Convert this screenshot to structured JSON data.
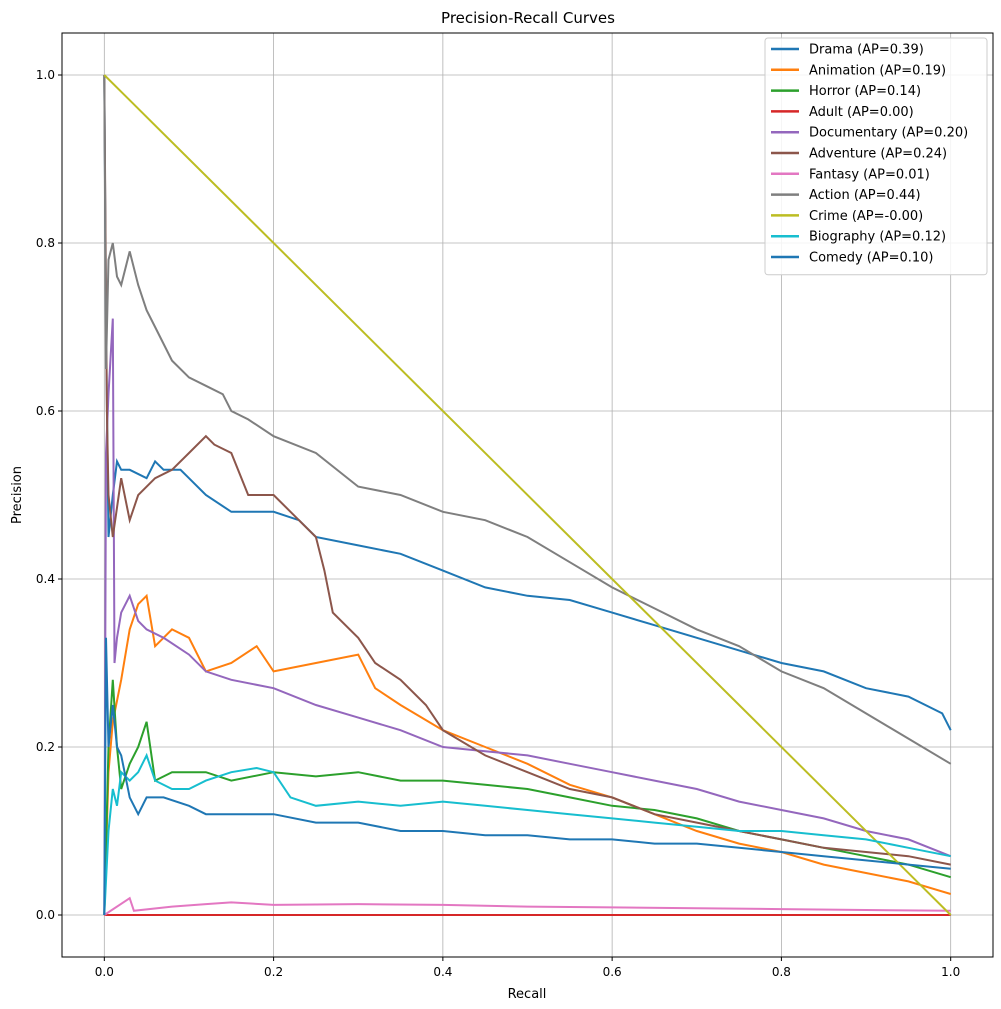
{
  "chart_data": {
    "type": "line",
    "title": "Precision-Recall Curves",
    "xlabel": "Recall",
    "ylabel": "Precision",
    "xlim": [
      -0.05,
      1.05
    ],
    "ylim": [
      -0.05,
      1.05
    ],
    "xticks": [
      "0.0",
      "0.2",
      "0.4",
      "0.6",
      "0.8",
      "1.0"
    ],
    "yticks": [
      "0.0",
      "0.2",
      "0.4",
      "0.6",
      "0.8",
      "1.0"
    ],
    "grid": true,
    "legend_position": "top-right",
    "series": [
      {
        "name": "Drama (AP=0.39)",
        "color": "#1f77b4",
        "x": [
          0,
          0.002,
          0.005,
          0.01,
          0.015,
          0.02,
          0.03,
          0.05,
          0.06,
          0.07,
          0.09,
          0.1,
          0.12,
          0.15,
          0.2,
          0.23,
          0.25,
          0.3,
          0.35,
          0.4,
          0.45,
          0.5,
          0.55,
          0.6,
          0.65,
          0.7,
          0.75,
          0.8,
          0.85,
          0.9,
          0.95,
          0.99,
          1.0
        ],
        "y": [
          1.0,
          0.7,
          0.45,
          0.5,
          0.54,
          0.53,
          0.53,
          0.52,
          0.54,
          0.53,
          0.53,
          0.52,
          0.5,
          0.48,
          0.48,
          0.47,
          0.45,
          0.44,
          0.43,
          0.41,
          0.39,
          0.38,
          0.375,
          0.36,
          0.345,
          0.33,
          0.315,
          0.3,
          0.29,
          0.27,
          0.26,
          0.24,
          0.22
        ]
      },
      {
        "name": "Animation (AP=0.19)",
        "color": "#ff7f0e",
        "x": [
          0,
          0.005,
          0.01,
          0.02,
          0.03,
          0.04,
          0.05,
          0.06,
          0.08,
          0.1,
          0.12,
          0.15,
          0.18,
          0.2,
          0.25,
          0.3,
          0.32,
          0.35,
          0.4,
          0.45,
          0.5,
          0.55,
          0.6,
          0.65,
          0.7,
          0.75,
          0.8,
          0.85,
          0.9,
          0.95,
          1.0
        ],
        "y": [
          0.0,
          0.17,
          0.23,
          0.28,
          0.34,
          0.37,
          0.38,
          0.32,
          0.34,
          0.33,
          0.29,
          0.3,
          0.32,
          0.29,
          0.3,
          0.31,
          0.27,
          0.25,
          0.22,
          0.2,
          0.18,
          0.155,
          0.14,
          0.12,
          0.1,
          0.085,
          0.075,
          0.06,
          0.05,
          0.04,
          0.025
        ]
      },
      {
        "name": "Horror (AP=0.14)",
        "color": "#2ca02c",
        "x": [
          0,
          0.005,
          0.01,
          0.015,
          0.02,
          0.03,
          0.04,
          0.05,
          0.06,
          0.08,
          0.1,
          0.12,
          0.15,
          0.2,
          0.25,
          0.3,
          0.35,
          0.4,
          0.45,
          0.5,
          0.55,
          0.6,
          0.65,
          0.7,
          0.75,
          0.8,
          0.85,
          0.9,
          0.95,
          1.0
        ],
        "y": [
          0.0,
          0.2,
          0.28,
          0.2,
          0.15,
          0.18,
          0.2,
          0.23,
          0.16,
          0.17,
          0.17,
          0.17,
          0.16,
          0.17,
          0.165,
          0.17,
          0.16,
          0.16,
          0.155,
          0.15,
          0.14,
          0.13,
          0.125,
          0.115,
          0.1,
          0.09,
          0.08,
          0.07,
          0.06,
          0.045
        ]
      },
      {
        "name": "Adult (AP=0.00)",
        "color": "#d62728",
        "x": [
          0,
          1.0
        ],
        "y": [
          0.0,
          0.0
        ]
      },
      {
        "name": "Documentary (AP=0.20)",
        "color": "#9467bd",
        "x": [
          0,
          0.002,
          0.005,
          0.01,
          0.012,
          0.015,
          0.02,
          0.03,
          0.04,
          0.05,
          0.07,
          0.1,
          0.12,
          0.15,
          0.2,
          0.25,
          0.3,
          0.35,
          0.4,
          0.45,
          0.5,
          0.55,
          0.6,
          0.65,
          0.7,
          0.75,
          0.8,
          0.85,
          0.9,
          0.95,
          1.0
        ],
        "y": [
          0.0,
          0.55,
          0.62,
          0.71,
          0.3,
          0.33,
          0.36,
          0.38,
          0.35,
          0.34,
          0.33,
          0.31,
          0.29,
          0.28,
          0.27,
          0.25,
          0.235,
          0.22,
          0.2,
          0.195,
          0.19,
          0.18,
          0.17,
          0.16,
          0.15,
          0.135,
          0.125,
          0.115,
          0.1,
          0.09,
          0.07
        ]
      },
      {
        "name": "Adventure (AP=0.24)",
        "color": "#8c564b",
        "x": [
          0,
          0.003,
          0.005,
          0.01,
          0.02,
          0.03,
          0.04,
          0.06,
          0.08,
          0.1,
          0.12,
          0.13,
          0.15,
          0.17,
          0.2,
          0.22,
          0.25,
          0.26,
          0.27,
          0.3,
          0.32,
          0.35,
          0.38,
          0.4,
          0.45,
          0.5,
          0.55,
          0.6,
          0.65,
          0.7,
          0.75,
          0.8,
          0.85,
          0.9,
          0.95,
          1.0
        ],
        "y": [
          1.0,
          0.6,
          0.5,
          0.45,
          0.52,
          0.47,
          0.5,
          0.52,
          0.53,
          0.55,
          0.57,
          0.56,
          0.55,
          0.5,
          0.5,
          0.48,
          0.45,
          0.41,
          0.36,
          0.33,
          0.3,
          0.28,
          0.25,
          0.22,
          0.19,
          0.17,
          0.15,
          0.14,
          0.12,
          0.11,
          0.1,
          0.09,
          0.08,
          0.075,
          0.07,
          0.06
        ]
      },
      {
        "name": "Fantasy (AP=0.01)",
        "color": "#e377c2",
        "x": [
          0,
          0.03,
          0.035,
          0.08,
          0.12,
          0.15,
          0.2,
          0.3,
          0.4,
          0.5,
          0.6,
          0.7,
          0.8,
          0.9,
          1.0
        ],
        "y": [
          0.0,
          0.02,
          0.005,
          0.01,
          0.013,
          0.015,
          0.012,
          0.013,
          0.012,
          0.01,
          0.009,
          0.008,
          0.007,
          0.006,
          0.005
        ]
      },
      {
        "name": "Action (AP=0.44)",
        "color": "#7f7f7f",
        "x": [
          0,
          0.002,
          0.005,
          0.01,
          0.015,
          0.02,
          0.03,
          0.04,
          0.05,
          0.06,
          0.08,
          0.1,
          0.12,
          0.14,
          0.15,
          0.17,
          0.2,
          0.25,
          0.3,
          0.35,
          0.4,
          0.45,
          0.5,
          0.55,
          0.6,
          0.65,
          0.7,
          0.75,
          0.8,
          0.85,
          0.9,
          0.95,
          1.0
        ],
        "y": [
          1.0,
          0.65,
          0.78,
          0.8,
          0.76,
          0.75,
          0.79,
          0.75,
          0.72,
          0.7,
          0.66,
          0.64,
          0.63,
          0.62,
          0.6,
          0.59,
          0.57,
          0.55,
          0.51,
          0.5,
          0.48,
          0.47,
          0.45,
          0.42,
          0.39,
          0.365,
          0.34,
          0.32,
          0.29,
          0.27,
          0.24,
          0.21,
          0.18
        ]
      },
      {
        "name": "Crime (AP=-0.00)",
        "color": "#bcbd22",
        "x": [
          0,
          1.0
        ],
        "y": [
          1.0,
          0.0
        ]
      },
      {
        "name": "Biography (AP=0.12)",
        "color": "#17becf",
        "x": [
          0,
          0.005,
          0.01,
          0.015,
          0.02,
          0.03,
          0.04,
          0.05,
          0.06,
          0.08,
          0.1,
          0.12,
          0.15,
          0.18,
          0.2,
          0.22,
          0.25,
          0.3,
          0.35,
          0.4,
          0.45,
          0.5,
          0.55,
          0.6,
          0.65,
          0.7,
          0.75,
          0.8,
          0.85,
          0.9,
          0.95,
          1.0
        ],
        "y": [
          0.0,
          0.1,
          0.15,
          0.13,
          0.17,
          0.16,
          0.17,
          0.19,
          0.16,
          0.15,
          0.15,
          0.16,
          0.17,
          0.175,
          0.17,
          0.14,
          0.13,
          0.135,
          0.13,
          0.135,
          0.13,
          0.125,
          0.12,
          0.115,
          0.11,
          0.105,
          0.1,
          0.1,
          0.095,
          0.09,
          0.08,
          0.07
        ]
      },
      {
        "name": "Comedy (AP=0.10)",
        "color": "#1f77b4",
        "x": [
          0,
          0.002,
          0.005,
          0.01,
          0.015,
          0.02,
          0.03,
          0.04,
          0.05,
          0.07,
          0.1,
          0.12,
          0.15,
          0.2,
          0.25,
          0.3,
          0.35,
          0.4,
          0.45,
          0.5,
          0.55,
          0.6,
          0.65,
          0.7,
          0.75,
          0.8,
          0.85,
          0.9,
          0.95,
          1.0
        ],
        "y": [
          0.0,
          0.33,
          0.2,
          0.25,
          0.2,
          0.19,
          0.14,
          0.12,
          0.14,
          0.14,
          0.13,
          0.12,
          0.12,
          0.12,
          0.11,
          0.11,
          0.1,
          0.1,
          0.095,
          0.095,
          0.09,
          0.09,
          0.085,
          0.085,
          0.08,
          0.075,
          0.07,
          0.065,
          0.06,
          0.055
        ]
      }
    ]
  }
}
